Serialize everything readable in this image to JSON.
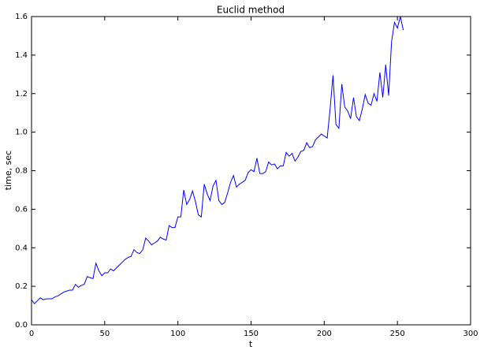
{
  "chart_data": {
    "type": "line",
    "title": "Euclid method",
    "xlabel": "t",
    "ylabel": "time, sec",
    "x": [
      0,
      2,
      4,
      6,
      8,
      10,
      12,
      14,
      16,
      18,
      20,
      22,
      24,
      26,
      28,
      30,
      32,
      34,
      36,
      38,
      40,
      42,
      44,
      46,
      48,
      50,
      52,
      54,
      56,
      58,
      60,
      62,
      64,
      66,
      68,
      70,
      72,
      74,
      76,
      78,
      80,
      82,
      84,
      86,
      88,
      90,
      92,
      94,
      96,
      98,
      100,
      102,
      104,
      106,
      108,
      110,
      112,
      114,
      116,
      118,
      120,
      122,
      124,
      126,
      128,
      130,
      132,
      134,
      136,
      138,
      140,
      142,
      144,
      146,
      148,
      150,
      152,
      154,
      156,
      158,
      160,
      162,
      164,
      166,
      168,
      170,
      172,
      174,
      176,
      178,
      180,
      182,
      184,
      186,
      188,
      190,
      192,
      194,
      196,
      198,
      200,
      202,
      204,
      206,
      208,
      210,
      212,
      214,
      216,
      218,
      220,
      222,
      224,
      226,
      228,
      230,
      232,
      234,
      236,
      238,
      240,
      242,
      244,
      246,
      248,
      250,
      252,
      254
    ],
    "series": [
      {
        "name": "time",
        "color": "#0000ff",
        "values": [
          0.13,
          0.11,
          0.125,
          0.14,
          0.13,
          0.135,
          0.135,
          0.135,
          0.145,
          0.15,
          0.16,
          0.17,
          0.175,
          0.18,
          0.18,
          0.21,
          0.195,
          0.205,
          0.21,
          0.25,
          0.245,
          0.24,
          0.32,
          0.28,
          0.255,
          0.27,
          0.27,
          0.29,
          0.28,
          0.295,
          0.31,
          0.325,
          0.34,
          0.35,
          0.355,
          0.39,
          0.375,
          0.37,
          0.39,
          0.45,
          0.435,
          0.415,
          0.425,
          0.435,
          0.455,
          0.445,
          0.44,
          0.515,
          0.505,
          0.505,
          0.56,
          0.56,
          0.7,
          0.625,
          0.65,
          0.695,
          0.64,
          0.57,
          0.56,
          0.73,
          0.68,
          0.645,
          0.72,
          0.75,
          0.645,
          0.625,
          0.635,
          0.685,
          0.74,
          0.775,
          0.715,
          0.73,
          0.74,
          0.75,
          0.79,
          0.805,
          0.795,
          0.865,
          0.785,
          0.785,
          0.795,
          0.845,
          0.83,
          0.835,
          0.81,
          0.825,
          0.825,
          0.895,
          0.875,
          0.89,
          0.85,
          0.87,
          0.9,
          0.905,
          0.945,
          0.92,
          0.925,
          0.96,
          0.975,
          0.99,
          0.98,
          0.97,
          1.12,
          1.295,
          1.04,
          1.02,
          1.25,
          1.13,
          1.11,
          1.07,
          1.18,
          1.08,
          1.06,
          1.12,
          1.195,
          1.15,
          1.14,
          1.2,
          1.16,
          1.31,
          1.18,
          1.35,
          1.19,
          1.47,
          1.57,
          1.54,
          1.6,
          1.53
        ]
      }
    ],
    "xlim": [
      0,
      300
    ],
    "xticks": [
      0,
      50,
      100,
      150,
      200,
      250,
      300
    ],
    "ylim": [
      0,
      1.6
    ],
    "yticks": [
      {
        "value": 0,
        "label": "0.0"
      },
      {
        "value": 0.2,
        "label": "0.2"
      },
      {
        "value": 0.4,
        "label": "0.4"
      },
      {
        "value": 0.6,
        "label": "0.6"
      },
      {
        "value": 0.8,
        "label": "0.8"
      },
      {
        "value": 1,
        "label": "1.0"
      },
      {
        "value": 1.2,
        "label": "1.2"
      },
      {
        "value": 1.4,
        "label": "1.4"
      },
      {
        "value": 1.6,
        "label": "1.6"
      }
    ]
  }
}
